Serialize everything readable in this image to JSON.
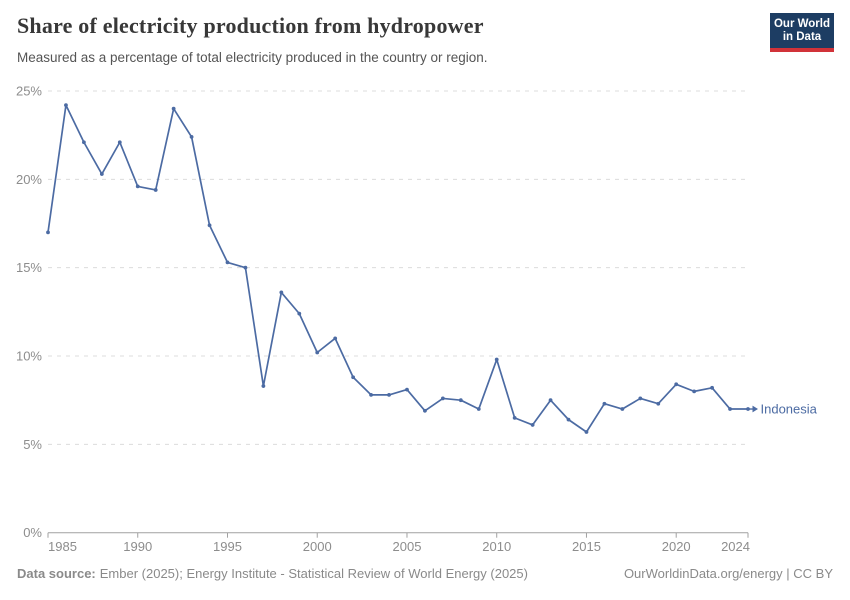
{
  "header": {
    "title": "Share of electricity production from hydropower",
    "subtitle": "Measured as a percentage of total electricity produced in the country or region.",
    "logo": {
      "line1": "Our World",
      "line2": "in Data",
      "bg_color": "#1d3d63",
      "accent_color": "#d13239",
      "text_color": "#ffffff"
    }
  },
  "chart_data": {
    "type": "line",
    "title": "Share of electricity production from hydropower",
    "x": [
      1985,
      1986,
      1987,
      1988,
      1989,
      1990,
      1991,
      1992,
      1993,
      1994,
      1995,
      1996,
      1997,
      1998,
      1999,
      2000,
      2001,
      2002,
      2003,
      2004,
      2005,
      2006,
      2007,
      2008,
      2009,
      2010,
      2011,
      2012,
      2013,
      2014,
      2015,
      2016,
      2017,
      2018,
      2019,
      2020,
      2021,
      2022,
      2023,
      2024
    ],
    "series": [
      {
        "name": "Indonesia",
        "color": "#4c6ba3",
        "values": [
          17.0,
          24.2,
          22.1,
          20.3,
          22.1,
          19.6,
          19.4,
          24.0,
          22.4,
          17.4,
          15.3,
          15.0,
          8.3,
          13.6,
          12.4,
          10.2,
          11.0,
          8.8,
          7.8,
          7.8,
          8.1,
          6.9,
          7.6,
          7.5,
          7.0,
          9.8,
          6.5,
          6.1,
          7.5,
          6.4,
          5.7,
          7.3,
          7.0,
          7.6,
          7.3,
          8.4,
          8.0,
          8.2,
          7.0,
          7.0
        ]
      }
    ],
    "xlim": [
      1985,
      2024
    ],
    "ylim": [
      0,
      25
    ],
    "x_ticks": [
      1985,
      1990,
      1995,
      2000,
      2005,
      2010,
      2015,
      2020,
      2024
    ],
    "y_ticks": [
      0,
      5,
      10,
      15,
      20,
      25
    ],
    "y_tick_suffix": "%",
    "grid": "horizontal-dashed",
    "grid_color": "#dcdcdc",
    "axis_color": "#a1a1a1",
    "tick_label_color": "#8d8d8d",
    "legend_position": "end-of-line-label"
  },
  "footer": {
    "source_label": "Data source:",
    "source_text": "Ember (2025); Energy Institute - Statistical Review of World Energy (2025)",
    "credit": "OurWorldinData.org/energy | CC BY"
  }
}
